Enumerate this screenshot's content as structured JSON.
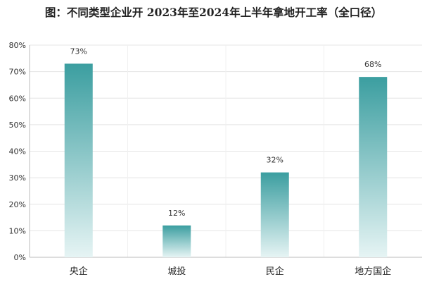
{
  "title": "图：不同类型企业开 2023年至2024年上半年拿地开工率（全口径）",
  "chart_data": {
    "type": "bar",
    "categories": [
      "央企",
      "城投",
      "民企",
      "地方国企"
    ],
    "values": [
      73,
      12,
      32,
      68
    ],
    "value_labels": [
      "73%",
      "12%",
      "32%",
      "68%"
    ],
    "ylim": [
      0,
      80
    ],
    "yticks": [
      0,
      10,
      20,
      30,
      40,
      50,
      60,
      70,
      80
    ],
    "ytick_labels": [
      "0%",
      "10%",
      "20%",
      "30%",
      "40%",
      "50%",
      "60%",
      "70%",
      "80%"
    ],
    "xlabel": "",
    "ylabel": "",
    "grid": true,
    "colors": {
      "bar_top": "#3b9ea0",
      "bar_bottom": "#e6f4f4",
      "grid": "#e4e4e4",
      "axis": "#bbbbbb"
    }
  }
}
